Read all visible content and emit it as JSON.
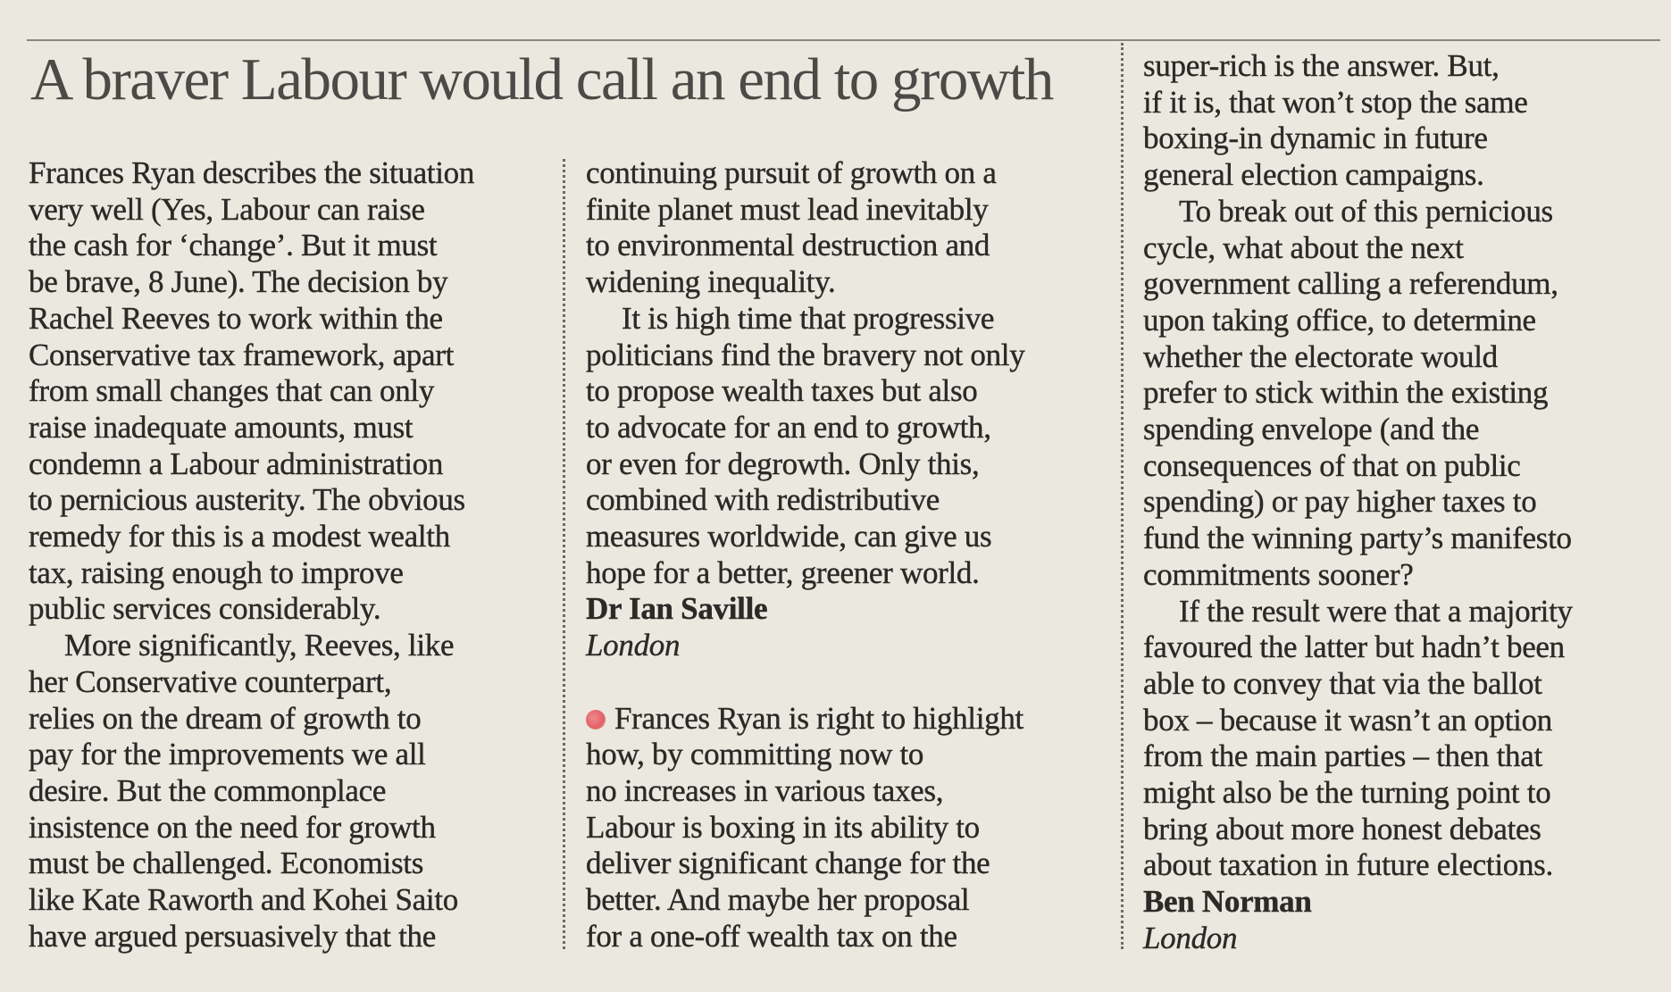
{
  "headline": "A braver Labour would call an end to growth",
  "columns": [
    [
      {
        "lines": [
          "Frances Ryan describes the situation",
          "very well (Yes, Labour can raise",
          "the cash for ‘change’. But it must",
          "be brave, 8 June). The decision by",
          "Rachel Reeves to work within the",
          "Conservative tax framework, apart",
          "from small changes that can only",
          "raise inadequate amounts, must",
          "condemn a Labour administration",
          "to pernicious austerity. The obvious",
          "remedy for this is a modest wealth",
          "tax, raising enough to improve",
          "public services considerably."
        ]
      },
      {
        "lines": [
          "More significantly, Reeves, like",
          "her Conservative counterpart,",
          "relies on the dream of growth to",
          "pay for the improvements we all",
          "desire. But the commonplace",
          "insistence on the need for growth",
          "must be challenged. Economists",
          "like Kate Raworth and Kohei Saito",
          "have argued persuasively that the"
        ]
      }
    ],
    [
      {
        "lines": [
          "continuing pursuit of growth on a",
          "finite planet must lead inevitably",
          "to environmental destruction and",
          "widening inequality."
        ]
      },
      {
        "lines": [
          "It is high time that progressive",
          "politicians find the bravery not only",
          "to propose wealth taxes but also",
          "to advocate for an end to growth,",
          "or even for degrowth. Only this,",
          "combined with redistributive",
          "measures worldwide, can give us",
          "hope for a better, greener world."
        ]
      },
      {
        "name": "Dr Ian Saville",
        "place": "London"
      },
      {
        "lines": [
          "Frances Ryan is right to highlight",
          "how, by committing now to",
          "no increases in various taxes,",
          "Labour is boxing in its ability to",
          "deliver significant change for the",
          "better. And maybe her proposal",
          "for a one-off wealth tax on the"
        ]
      }
    ],
    [
      {
        "lines": [
          "super-rich is the answer. But,",
          "if it is, that won’t stop the same",
          "boxing-in dynamic in future",
          "general election campaigns."
        ]
      },
      {
        "lines": [
          "To break out of this pernicious",
          "cycle, what about the next",
          "government calling a referendum,",
          "upon taking office, to determine",
          "whether the electorate would",
          "prefer to stick within the existing",
          "spending envelope (and the",
          "consequences of that on public",
          "spending) or pay higher taxes to",
          "fund the winning party’s manifesto",
          "commitments sooner?"
        ]
      },
      {
        "lines": [
          "If the result were that a majority",
          "favoured the latter but hadn’t been",
          "able to convey that via the ballot",
          "box – because it wasn’t an option",
          "from the main parties – then that",
          "might also be the turning point to",
          "bring about more honest debates",
          "about taxation in future elections."
        ]
      },
      {
        "name": "Ben Norman",
        "place": "London"
      }
    ]
  ]
}
